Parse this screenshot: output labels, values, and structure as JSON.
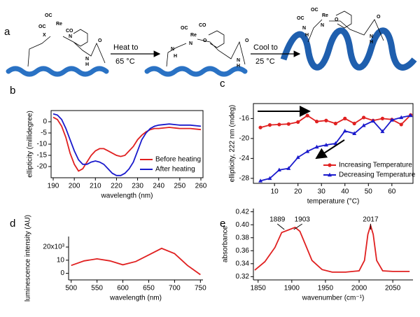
{
  "scheme": {
    "panel": "a",
    "steps": [
      {
        "action": "Heat to",
        "temp": "65 °C"
      },
      {
        "action": "Cool to",
        "temp": "25 °C"
      }
    ],
    "structures": [
      {
        "labels": [
          "OC",
          "CO",
          "Re",
          "OC",
          "X",
          "N",
          "N",
          "H",
          "O"
        ]
      },
      {
        "labels": [
          "OC",
          "CO",
          "Re",
          "N",
          "N",
          "H",
          "O",
          "N",
          "H",
          "O"
        ]
      },
      {
        "labels": [
          "OC",
          "OC",
          "Re",
          "N",
          "N",
          "H",
          "O",
          "N",
          "H",
          "O"
        ]
      }
    ]
  },
  "chart_data": [
    {
      "type": "line",
      "panel": "b",
      "x_label": "wavelength (nm)",
      "y_label": "ellipticity (millidegree)",
      "frame": true,
      "x": [
        190,
        192,
        194,
        196,
        198,
        200,
        202,
        204,
        206,
        208,
        210,
        212,
        214,
        216,
        218,
        220,
        222,
        224,
        226,
        228,
        230,
        232,
        234,
        236,
        238,
        240,
        245,
        250,
        255,
        260
      ],
      "series": [
        {
          "name": "Before heating",
          "color": "#e02020",
          "values": [
            2,
            1,
            -2,
            -7,
            -14,
            -19,
            -22,
            -21,
            -18,
            -15,
            -13,
            -12,
            -12,
            -13,
            -14,
            -15,
            -15.5,
            -15,
            -13,
            -11,
            -8,
            -6,
            -4.5,
            -3.5,
            -3,
            -3,
            -2.5,
            -3,
            -3,
            -3.5
          ]
        },
        {
          "name": "After heating",
          "color": "#1a1acc",
          "values": [
            3.5,
            3,
            1,
            -3,
            -8,
            -13,
            -17,
            -19,
            -19,
            -18,
            -17.5,
            -18,
            -19,
            -21,
            -23,
            -24,
            -24,
            -23,
            -21,
            -18,
            -13,
            -8,
            -5,
            -3,
            -2,
            -1.5,
            -1,
            -1.5,
            -1.5,
            -2
          ]
        }
      ],
      "xlim": [
        189,
        261
      ],
      "xticks": [
        190,
        200,
        210,
        220,
        230,
        240,
        250,
        260
      ],
      "ylim": [
        -25,
        5
      ],
      "yticks": [
        0,
        -5,
        -10,
        -15,
        -20
      ],
      "legend": "lower right"
    },
    {
      "type": "line",
      "panel": "c",
      "x_label": "temperature (°C)",
      "y_label": "ellipticity, 222 nm (mdeg)",
      "frame": true,
      "x": [
        4,
        8,
        12,
        16,
        20,
        24,
        28,
        32,
        36,
        40,
        44,
        48,
        52,
        56,
        60,
        64,
        68
      ],
      "series": [
        {
          "name": "Increasing Temperature",
          "color": "#e02020",
          "marker": "circle",
          "values": [
            -17.8,
            -17.3,
            -17.2,
            -17.1,
            -16.7,
            -15.4,
            -16.6,
            -16.4,
            -17.0,
            -16.0,
            -17.0,
            -15.8,
            -16.4,
            -16.0,
            -16.2,
            -17.2,
            -15.3
          ]
        },
        {
          "name": "Decreasing Temperature",
          "color": "#1a1acc",
          "marker": "triangle",
          "values": [
            -28.5,
            -28.0,
            -26.3,
            -26.0,
            -23.8,
            -22.6,
            -21.7,
            -21.3,
            -21.0,
            -18.5,
            -19.0,
            -17.4,
            -16.5,
            -18.6,
            -16.3,
            -15.8,
            -15.4
          ]
        }
      ],
      "xlim": [
        1,
        69
      ],
      "xticks": [
        10,
        20,
        30,
        40,
        50,
        60
      ],
      "ylim": [
        -29,
        -13
      ],
      "yticks": [
        -16,
        -20,
        -24,
        -28
      ],
      "legend": "lower right"
    },
    {
      "type": "line",
      "panel": "d",
      "x_label": "wavelength (nm)",
      "y_label": "luminescence intensity (AU)",
      "frame": false,
      "x": [
        500,
        525,
        550,
        575,
        600,
        625,
        650,
        675,
        700,
        725,
        750
      ],
      "series": [
        {
          "color": "#e02020",
          "values": [
            6,
            9.5,
            11,
            9.5,
            6.5,
            9,
            14,
            19,
            15,
            6,
            -1
          ]
        }
      ],
      "xlim": [
        495,
        755
      ],
      "xticks": [
        500,
        550,
        600,
        650,
        700,
        750
      ],
      "ylim": [
        -5,
        28
      ],
      "yticks": [
        0,
        10,
        {
          "value": 20,
          "label": "20x10³"
        }
      ]
    },
    {
      "type": "line",
      "panel": "e",
      "x_label": "wavenumber (cm⁻¹)",
      "y_label": "absorbance",
      "frame": false,
      "x": [
        1845,
        1860,
        1875,
        1885,
        1895,
        1905,
        1912,
        1920,
        1930,
        1945,
        1960,
        1980,
        2000,
        2008,
        2013,
        2017,
        2021,
        2026,
        2035,
        2050,
        2075
      ],
      "series": [
        {
          "color": "#e02020",
          "values": [
            0.33,
            0.343,
            0.365,
            0.388,
            0.392,
            0.396,
            0.39,
            0.37,
            0.345,
            0.331,
            0.327,
            0.327,
            0.329,
            0.345,
            0.385,
            0.399,
            0.385,
            0.345,
            0.329,
            0.328,
            0.328
          ]
        }
      ],
      "xlim": [
        1843,
        2080
      ],
      "xticks": [
        1850,
        1900,
        1950,
        2000,
        2050
      ],
      "ylim": [
        0.315,
        0.425
      ],
      "yticks": [
        0.32,
        0.34,
        0.36,
        0.38,
        {
          "value": 0.4,
          "label": "0.40"
        },
        0.42
      ],
      "annotations": [
        {
          "text": "1889",
          "x": 1889
        },
        {
          "text": "1903",
          "x": 1903
        },
        {
          "text": "2017",
          "x": 2017
        }
      ]
    }
  ]
}
